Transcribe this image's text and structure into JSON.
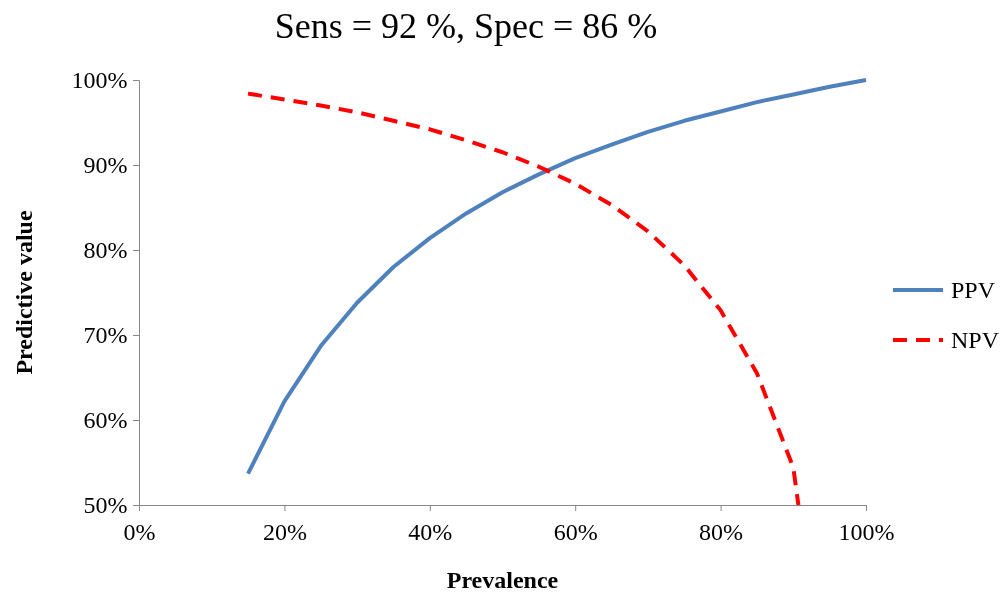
{
  "chart_data": {
    "type": "line",
    "title": "Sens = 92 %, Spec = 86 %",
    "xlabel": "Prevalence",
    "ylabel": "Predictive value",
    "xlim": [
      0,
      100
    ],
    "xticks": [
      {
        "value": 0,
        "label": "0%"
      },
      {
        "value": 20,
        "label": "20%"
      },
      {
        "value": 40,
        "label": "40%"
      },
      {
        "value": 60,
        "label": "60%"
      },
      {
        "value": 80,
        "label": "80%"
      },
      {
        "value": 100,
        "label": "100%"
      }
    ],
    "ylim": [
      50,
      100
    ],
    "yticks": [
      {
        "value": 50,
        "label": "50%"
      },
      {
        "value": 60,
        "label": "60%"
      },
      {
        "value": 70,
        "label": "70%"
      },
      {
        "value": 80,
        "label": "80%"
      },
      {
        "value": 90,
        "label": "90%"
      },
      {
        "value": 100,
        "label": "100%"
      }
    ],
    "grid": false,
    "legend": "right",
    "marker": "none",
    "series": [
      {
        "name": "PPV",
        "color": "#4f81bd",
        "line_style": "solid",
        "x": [
          15,
          20,
          25,
          30,
          35,
          40,
          45,
          50,
          55,
          60,
          65,
          70,
          75,
          80,
          85,
          90,
          95,
          100
        ],
        "values": [
          53.7,
          62.2,
          68.7,
          73.8,
          78.0,
          81.4,
          84.3,
          86.8,
          88.9,
          90.8,
          92.4,
          93.9,
          95.2,
          96.3,
          97.4,
          98.3,
          99.2,
          100
        ]
      },
      {
        "name": "NPV",
        "color": "#ff0000",
        "line_style": "dashed",
        "x": [
          15,
          20,
          25,
          30,
          35,
          40,
          45,
          50,
          55,
          60,
          65,
          70,
          75,
          80,
          85,
          90,
          90.7
        ],
        "values": [
          98.4,
          97.7,
          97.0,
          96.2,
          95.2,
          94.2,
          92.9,
          91.5,
          89.8,
          87.8,
          85.3,
          82.2,
          78.2,
          72.9,
          65.5,
          54.4,
          50
        ]
      }
    ]
  }
}
